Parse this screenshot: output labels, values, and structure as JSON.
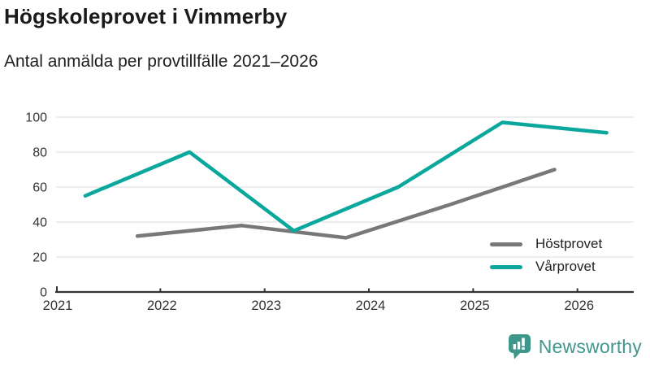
{
  "header": {
    "title": "Högskoleprovet i Vimmerby",
    "subtitle": "Antal anmälda per provtillfälle 2021–2026"
  },
  "chart_data": {
    "type": "line",
    "title": "Högskoleprovet i Vimmerby",
    "subtitle": "Antal anmälda per provtillfälle 2021–2026",
    "xlabel": "",
    "ylabel": "",
    "xlim": [
      2021,
      2026.54
    ],
    "ylim": [
      0,
      100
    ],
    "x_ticks": [
      "2021",
      "2022",
      "2023",
      "2024",
      "2025",
      "2026"
    ],
    "y_ticks": [
      0,
      20,
      40,
      60,
      80,
      100
    ],
    "grid": "horizontal",
    "legend_position": "inside-bottom-right",
    "series": [
      {
        "name": "Höstprovet",
        "color": "#787878",
        "points": [
          {
            "x": 2021.78,
            "y": 32
          },
          {
            "x": 2022.78,
            "y": 38
          },
          {
            "x": 2023.78,
            "y": 31
          },
          {
            "x": 2024.78,
            "y": 50
          },
          {
            "x": 2025.78,
            "y": 70
          }
        ]
      },
      {
        "name": "Vårprovet",
        "color": "#0aa79c",
        "points": [
          {
            "x": 2021.28,
            "y": 55
          },
          {
            "x": 2022.28,
            "y": 80
          },
          {
            "x": 2023.28,
            "y": 35
          },
          {
            "x": 2024.28,
            "y": 60
          },
          {
            "x": 2025.28,
            "y": 97
          },
          {
            "x": 2026.28,
            "y": 91
          }
        ]
      }
    ],
    "colors": {
      "grid": "#e2e2e2",
      "axis": "#333333",
      "tick_text": "#333333",
      "title_text": "#1a1a1a"
    }
  },
  "legend": {
    "items": [
      {
        "label": "Höstprovet"
      },
      {
        "label": "Vårprovet"
      }
    ]
  },
  "footer": {
    "brand": "Newsworthy",
    "brand_color": "#3f968b"
  }
}
